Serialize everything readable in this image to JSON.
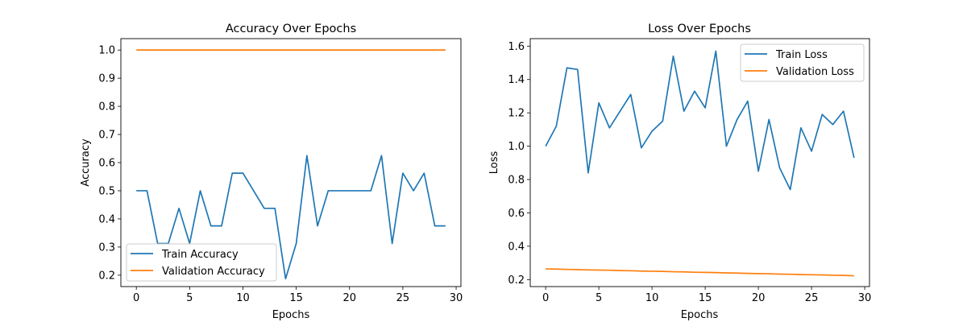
{
  "chart_data": [
    {
      "type": "line",
      "title": "Accuracy Over Epochs",
      "xlabel": "Epochs",
      "ylabel": "Accuracy",
      "xlim": [
        -1.45,
        30.45
      ],
      "ylim": [
        0.1595,
        1.0405
      ],
      "xticks": [
        0,
        5,
        10,
        15,
        20,
        25,
        30
      ],
      "xtick_labels": [
        "0",
        "5",
        "10",
        "15",
        "20",
        "25",
        "30"
      ],
      "yticks": [
        0.2,
        0.3,
        0.4,
        0.5,
        0.6,
        0.7,
        0.8,
        0.9,
        1.0
      ],
      "ytick_labels": [
        "0.2",
        "0.3",
        "0.4",
        "0.5",
        "0.6",
        "0.7",
        "0.8",
        "0.9",
        "1.0"
      ],
      "grid": false,
      "legend_position": "lower-left",
      "x": [
        0,
        1,
        2,
        3,
        4,
        5,
        6,
        7,
        8,
        9,
        10,
        11,
        12,
        13,
        14,
        15,
        16,
        17,
        18,
        19,
        20,
        21,
        22,
        23,
        24,
        25,
        26,
        27,
        28,
        29
      ],
      "series": [
        {
          "name": "Train Accuracy",
          "color": "#1f77b4",
          "values": [
            0.5,
            0.5,
            0.3125,
            0.3125,
            0.4375,
            0.3125,
            0.5,
            0.375,
            0.375,
            0.5625,
            0.5625,
            0.5,
            0.4375,
            0.4375,
            0.1875,
            0.3125,
            0.625,
            0.375,
            0.5,
            0.5,
            0.5,
            0.5,
            0.5,
            0.625,
            0.3125,
            0.5625,
            0.5,
            0.5625,
            0.375,
            0.375
          ]
        },
        {
          "name": "Validation Accuracy",
          "color": "#ff7f0e",
          "values": [
            1.0,
            1.0,
            1.0,
            1.0,
            1.0,
            1.0,
            1.0,
            1.0,
            1.0,
            1.0,
            1.0,
            1.0,
            1.0,
            1.0,
            1.0,
            1.0,
            1.0,
            1.0,
            1.0,
            1.0,
            1.0,
            1.0,
            1.0,
            1.0,
            1.0,
            1.0,
            1.0,
            1.0,
            1.0,
            1.0
          ]
        }
      ]
    },
    {
      "type": "line",
      "title": "Loss Over Epochs",
      "xlabel": "Epochs",
      "ylabel": "Loss",
      "xlim": [
        -1.45,
        30.45
      ],
      "ylim": [
        0.158,
        1.645
      ],
      "xticks": [
        0,
        5,
        10,
        15,
        20,
        25,
        30
      ],
      "xtick_labels": [
        "0",
        "5",
        "10",
        "15",
        "20",
        "25",
        "30"
      ],
      "yticks": [
        0.2,
        0.4,
        0.6,
        0.8,
        1.0,
        1.2,
        1.4,
        1.6
      ],
      "ytick_labels": [
        "0.2",
        "0.4",
        "0.6",
        "0.8",
        "1.0",
        "1.2",
        "1.4",
        "1.6"
      ],
      "grid": false,
      "legend_position": "upper-right",
      "x": [
        0,
        1,
        2,
        3,
        4,
        5,
        6,
        7,
        8,
        9,
        10,
        11,
        12,
        13,
        14,
        15,
        16,
        17,
        18,
        19,
        20,
        21,
        22,
        23,
        24,
        25,
        26,
        27,
        28,
        29
      ],
      "series": [
        {
          "name": "Train Loss",
          "color": "#1f77b4",
          "values": [
            1.0,
            1.12,
            1.47,
            1.46,
            0.84,
            1.26,
            1.11,
            1.21,
            1.31,
            0.99,
            1.09,
            1.15,
            1.54,
            1.21,
            1.33,
            1.23,
            1.57,
            1.0,
            1.16,
            1.27,
            0.85,
            1.16,
            0.87,
            0.74,
            1.11,
            0.97,
            1.19,
            1.13,
            1.21,
            0.93
          ]
        },
        {
          "name": "Validation Loss",
          "color": "#ff7f0e",
          "values": [
            0.264,
            0.263,
            0.261,
            0.26,
            0.258,
            0.257,
            0.256,
            0.254,
            0.253,
            0.251,
            0.25,
            0.249,
            0.247,
            0.246,
            0.244,
            0.243,
            0.242,
            0.24,
            0.239,
            0.237,
            0.236,
            0.235,
            0.233,
            0.232,
            0.23,
            0.229,
            0.228,
            0.226,
            0.225,
            0.223
          ]
        }
      ]
    }
  ]
}
